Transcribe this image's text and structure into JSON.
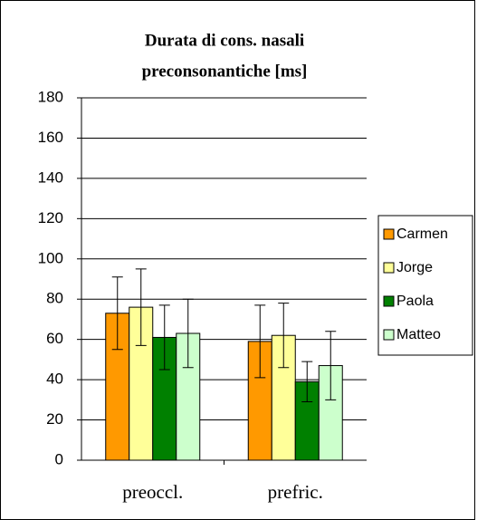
{
  "chart_data": {
    "type": "bar",
    "title": [
      "Durata di cons. nasali",
      "preconsonantiche [ms]"
    ],
    "categories": [
      "preoccl.",
      "prefric."
    ],
    "series": [
      {
        "name": "Carmen",
        "color": "#ff9900",
        "values": [
          73,
          59
        ],
        "errors": [
          18,
          18
        ]
      },
      {
        "name": "Jorge",
        "color": "#ffff99",
        "values": [
          76,
          62
        ],
        "errors": [
          19,
          16
        ]
      },
      {
        "name": "Paola",
        "color": "#008000",
        "values": [
          61,
          39
        ],
        "errors": [
          16,
          10
        ]
      },
      {
        "name": "Matteo",
        "color": "#ccffcc",
        "values": [
          63,
          47
        ],
        "errors": [
          17,
          17
        ]
      }
    ],
    "ylim": [
      0,
      180
    ],
    "yticks": [
      0,
      20,
      40,
      60,
      80,
      100,
      120,
      140,
      160,
      180
    ],
    "grid": true,
    "legend": "right"
  }
}
